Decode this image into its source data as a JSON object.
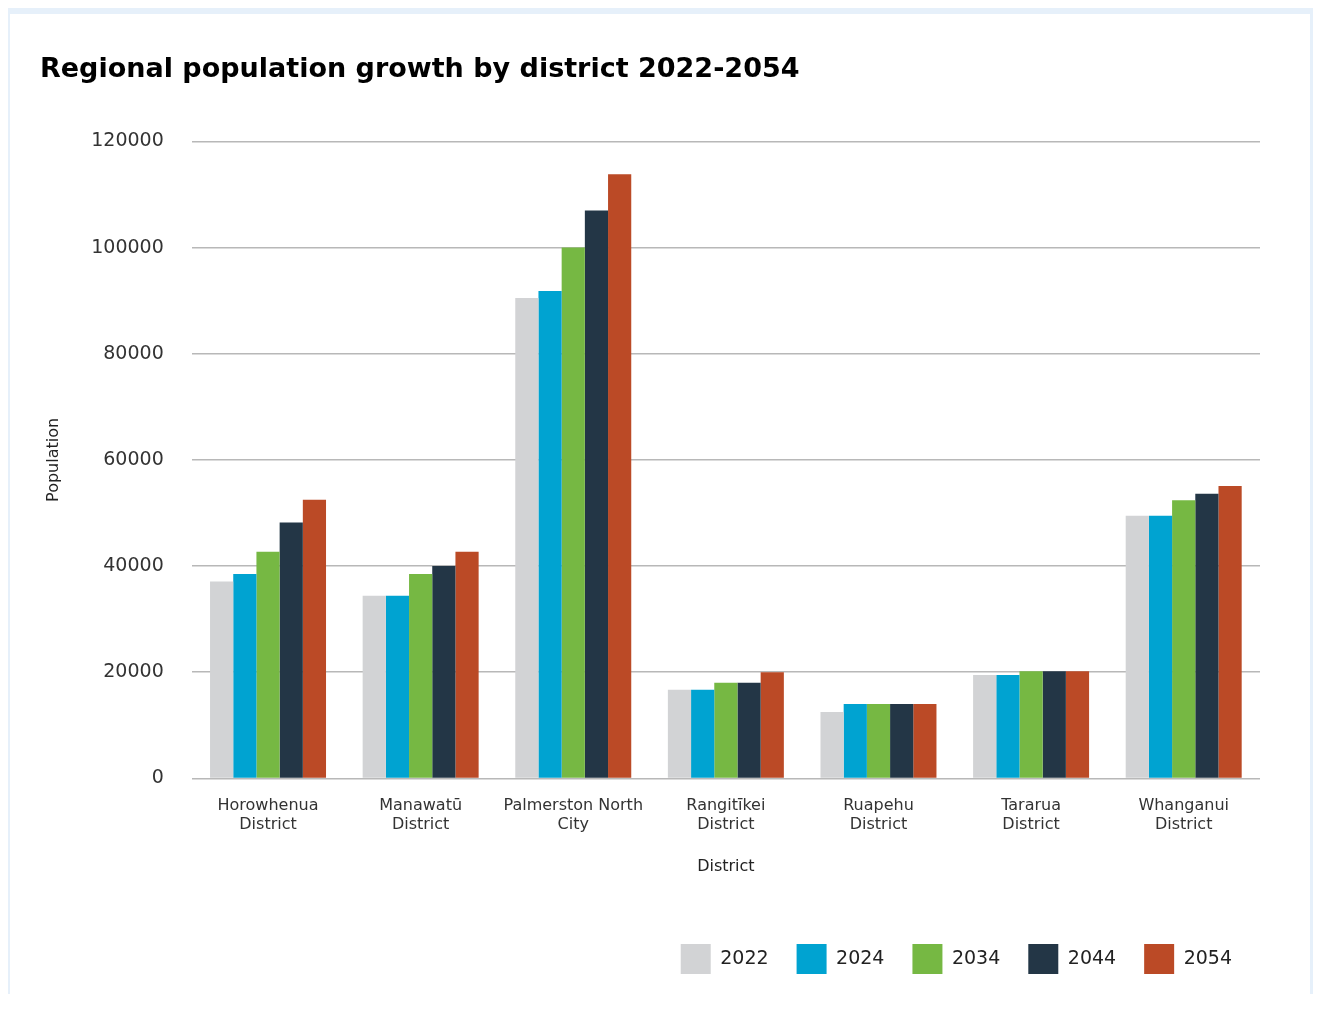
{
  "chart_data": {
    "type": "bar",
    "title": "Regional population growth by district 2022-2054",
    "xlabel": "District",
    "ylabel": "Population",
    "categories": [
      [
        "Horowhenua",
        "District"
      ],
      [
        "Manawatū",
        "District"
      ],
      [
        "Palmerston North",
        "City"
      ],
      [
        "Rangitīkei",
        "District"
      ],
      [
        "Ruapehu",
        "District"
      ],
      [
        "Tararua",
        "District"
      ],
      [
        "Whanganui",
        "District"
      ]
    ],
    "series": [
      {
        "name": "2022",
        "color": "#d2d3d5",
        "values": [
          37100,
          34400,
          90500,
          16700,
          12500,
          19500,
          49500
        ]
      },
      {
        "name": "2024",
        "color": "#00a3d1",
        "values": [
          38500,
          34400,
          91800,
          16700,
          14000,
          19500,
          49500
        ]
      },
      {
        "name": "2034",
        "color": "#76b843",
        "values": [
          42700,
          38500,
          100000,
          18000,
          14000,
          20200,
          52400
        ]
      },
      {
        "name": "2044",
        "color": "#233646",
        "values": [
          48200,
          40000,
          107000,
          18000,
          14000,
          20200,
          53600
        ]
      },
      {
        "name": "2054",
        "color": "#bb4a26",
        "values": [
          52500,
          42700,
          113800,
          20000,
          14000,
          20200,
          55100
        ]
      }
    ],
    "ylim": [
      0,
      120000
    ],
    "yticks": [
      0,
      20000,
      40000,
      60000,
      80000,
      100000,
      120000
    ],
    "grid": "y",
    "legend": "bottom right"
  }
}
